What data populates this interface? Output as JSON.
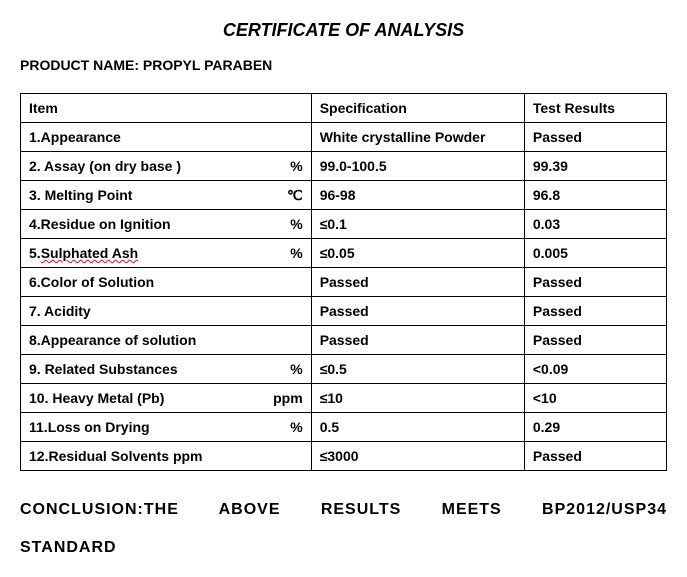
{
  "document": {
    "title": "CERTIFICATE OF ANALYSIS",
    "product_name_label": "PRODUCT NAME: PROPYL PARABEN",
    "conclusion": "CONCLUSION:THE ABOVE RESULTS MEETS BP2012/USP34 STANDARD"
  },
  "table": {
    "headers": {
      "item": "Item",
      "specification": "Specification",
      "results": "Test Results"
    },
    "rows": [
      {
        "item": "1.Appearance",
        "unit": "",
        "spec": "White crystalline Powder",
        "result": "Passed"
      },
      {
        "item": "2. Assay (on dry base )",
        "unit": "%",
        "spec": "99.0-100.5",
        "result": "99.39"
      },
      {
        "item": "3. Melting Point",
        "unit": "℃",
        "spec": "96-98",
        "result": "96.8"
      },
      {
        "item": "4.Residue on Ignition",
        "unit": "%",
        "spec": "≤0.1",
        "result": "0.03"
      },
      {
        "item": "5.Sulphated Ash",
        "unit": "%",
        "spec": "≤0.05",
        "result": "0.005",
        "wavy": true
      },
      {
        "item": "6.Color of Solution",
        "unit": "",
        "spec": "Passed",
        "result": "Passed"
      },
      {
        "item": "7. Acidity",
        "unit": "",
        "spec": "Passed",
        "result": "Passed"
      },
      {
        "item": "8.Appearance of solution",
        "unit": "",
        "spec": "Passed",
        "result": "Passed"
      },
      {
        "item": "9. Related Substances",
        "unit": "%",
        "spec": "≤0.5",
        "result": "<0.09"
      },
      {
        "item": "10. Heavy Metal (Pb)",
        "unit": "ppm",
        "spec": "≤10",
        "result": "<10"
      },
      {
        "item": "11.Loss on Drying",
        "unit": "%",
        "spec": "0.5",
        "result": "0.29"
      },
      {
        "item": "12.Residual Solvents ppm",
        "unit": "",
        "spec": "≤3000",
        "result": "Passed"
      }
    ]
  },
  "colors": {
    "text": "#000000",
    "background": "#ffffff",
    "border": "#000000",
    "wavy_underline": "#ff0000"
  },
  "typography": {
    "title_fontsize": 18,
    "product_fontsize": 14,
    "cell_fontsize": 14,
    "conclusion_fontsize": 16
  }
}
